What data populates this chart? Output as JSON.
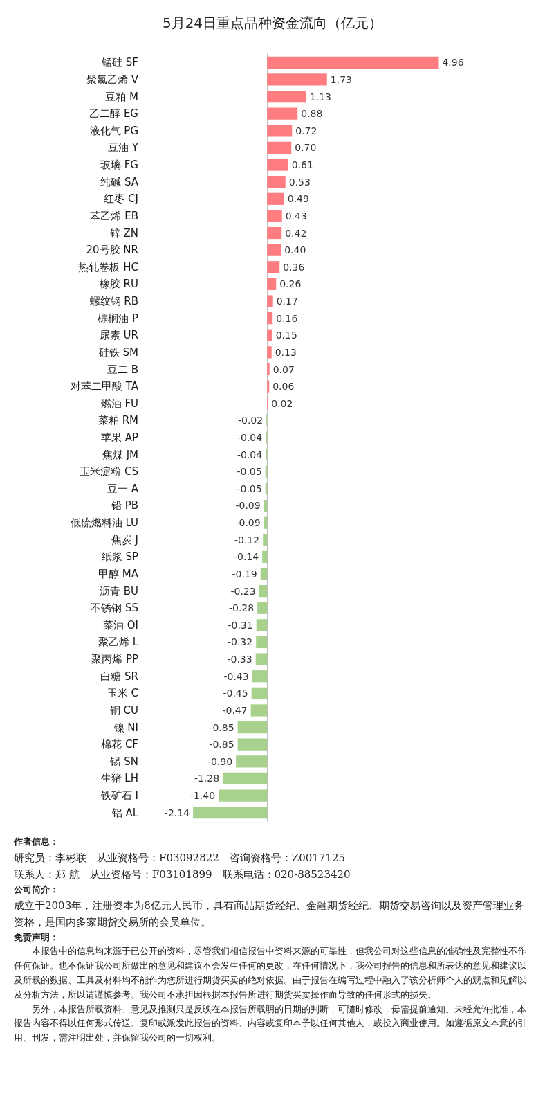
{
  "chart_data": {
    "type": "bar",
    "orientation": "horizontal",
    "title": "5月24日重点品种资金流向（亿元）",
    "categories": [
      "锰硅 SF",
      "聚氯乙烯 V",
      "豆粕 M",
      "乙二醇 EG",
      "液化气 PG",
      "豆油 Y",
      "玻璃 FG",
      "纯碱 SA",
      "红枣 CJ",
      "苯乙烯 EB",
      "锌 ZN",
      "20号胶 NR",
      "热轧卷板 HC",
      "橡胶 RU",
      "螺纹钢 RB",
      "棕榈油 P",
      "尿素 UR",
      "硅铁 SM",
      "豆二 B",
      "对苯二甲酸 TA",
      "燃油 FU",
      "菜粕 RM",
      "苹果 AP",
      "焦煤 JM",
      "玉米淀粉 CS",
      "豆一 A",
      "铅 PB",
      "低硫燃料油 LU",
      "焦炭 J",
      "纸浆 SP",
      "甲醇 MA",
      "沥青 BU",
      "不锈钢 SS",
      "菜油 OI",
      "聚乙烯 L",
      "聚丙烯 PP",
      "白糖 SR",
      "玉米 C",
      "铜 CU",
      "镍 NI",
      "棉花 CF",
      "锡 SN",
      "生猪 LH",
      "铁矿石 I",
      "铝 AL"
    ],
    "values": [
      4.96,
      1.73,
      1.13,
      0.88,
      0.72,
      0.7,
      0.61,
      0.53,
      0.49,
      0.43,
      0.42,
      0.4,
      0.36,
      0.26,
      0.17,
      0.16,
      0.15,
      0.13,
      0.07,
      0.06,
      0.02,
      -0.02,
      -0.04,
      -0.04,
      -0.05,
      -0.05,
      -0.09,
      -0.09,
      -0.12,
      -0.14,
      -0.19,
      -0.23,
      -0.28,
      -0.31,
      -0.32,
      -0.33,
      -0.43,
      -0.45,
      -0.47,
      -0.85,
      -0.85,
      -0.9,
      -1.28,
      -1.4,
      -2.14
    ],
    "value_labels": [
      "4.96",
      "1.73",
      "1.13",
      "0.88",
      "0.72",
      "0.70",
      "0.61",
      "0.53",
      "0.49",
      "0.43",
      "0.42",
      "0.40",
      "0.36",
      "0.26",
      "0.17",
      "0.16",
      "0.15",
      "0.13",
      "0.07",
      "0.06",
      "0.02",
      "-0.02",
      "-0.04",
      "-0.04",
      "-0.05",
      "-0.05",
      "-0.09",
      "-0.09",
      "-0.12",
      "-0.14",
      "-0.19",
      "-0.23",
      "-0.28",
      "-0.31",
      "-0.32",
      "-0.33",
      "-0.43",
      "-0.45",
      "-0.47",
      "-0.85",
      "-0.85",
      "-0.90",
      "-1.28",
      "-1.40",
      "-2.14"
    ],
    "colors": [
      "#ff7c80",
      "#ff7c80",
      "#ff7c80",
      "#ff7c80",
      "#ff7c80",
      "#ff7c80",
      "#ff7c80",
      "#ff7c80",
      "#ff7c80",
      "#ff7c80",
      "#ff7c80",
      "#ff7c80",
      "#ff7c80",
      "#ff7c80",
      "#ff7c80",
      "#ff7c80",
      "#ff7c80",
      "#ff7c80",
      "#ff7c80",
      "#ff7c80",
      "#ff7c80",
      "#a9d18e",
      "#a9d18e",
      "#a9d18e",
      "#a9d18e",
      "#a9d18e",
      "#a9d18e",
      "#a9d18e",
      "#a9d18e",
      "#a9d18e",
      "#a9d18e",
      "#a9d18e",
      "#a9d18e",
      "#a9d18e",
      "#a9d18e",
      "#a9d18e",
      "#a9d18e",
      "#a9d18e",
      "#a9d18e",
      "#a9d18e",
      "#a9d18e",
      "#a9d18e",
      "#a9d18e",
      "#a9d18e",
      "#a9d18e"
    ],
    "annotations": [
      "作者信息：",
      "研究员：李彬联　从业资格号：F03092822　咨询资格号：Z0017125",
      "联系人：郑 航　从业资格号：F03101899　联系电话：020-88523420",
      "公司简介：",
      "成立于2003年，注册资本为8亿元人民币，具有商品期货经纪、金融期货经纪、期货交易咨询以及资产管理业务资格，是国内多家期货交易所的会员单位。",
      "免责声明：",
      "本报告中的信息均来源于已公开的资料，尽管我们相信报告中资料来源的可靠性，但我公司对这些信息的准确性及完整性不作任何保证。也不保证我公司所做出的意见和建议不会发生任何的更改，在任何情况下，我公司报告的信息和所表达的意见和建议以及所载的数据、工具及材料均不能作为您所进行期货买卖的绝对依据。由于报告在编写过程中融入了该分析师个人的观点和见解以及分析方法，所以请谨慎参考。我公司不承担因根据本报告所进行期货买卖操作而导致的任何形式的损失。",
      "另外，本报告所载资料、意见及推测只是反映在本报告所载明的日期的判断，可随时修改，毋需提前通知。未经允许批准，本报告内容不得以任何形式传送、复印或派发此报告的资料、内容或复印本予以任何其他人，或投入商业使用。如遵循原文本意的引用、刊发，需注明出处，并保留我公司的一切权利。"
    ]
  }
}
